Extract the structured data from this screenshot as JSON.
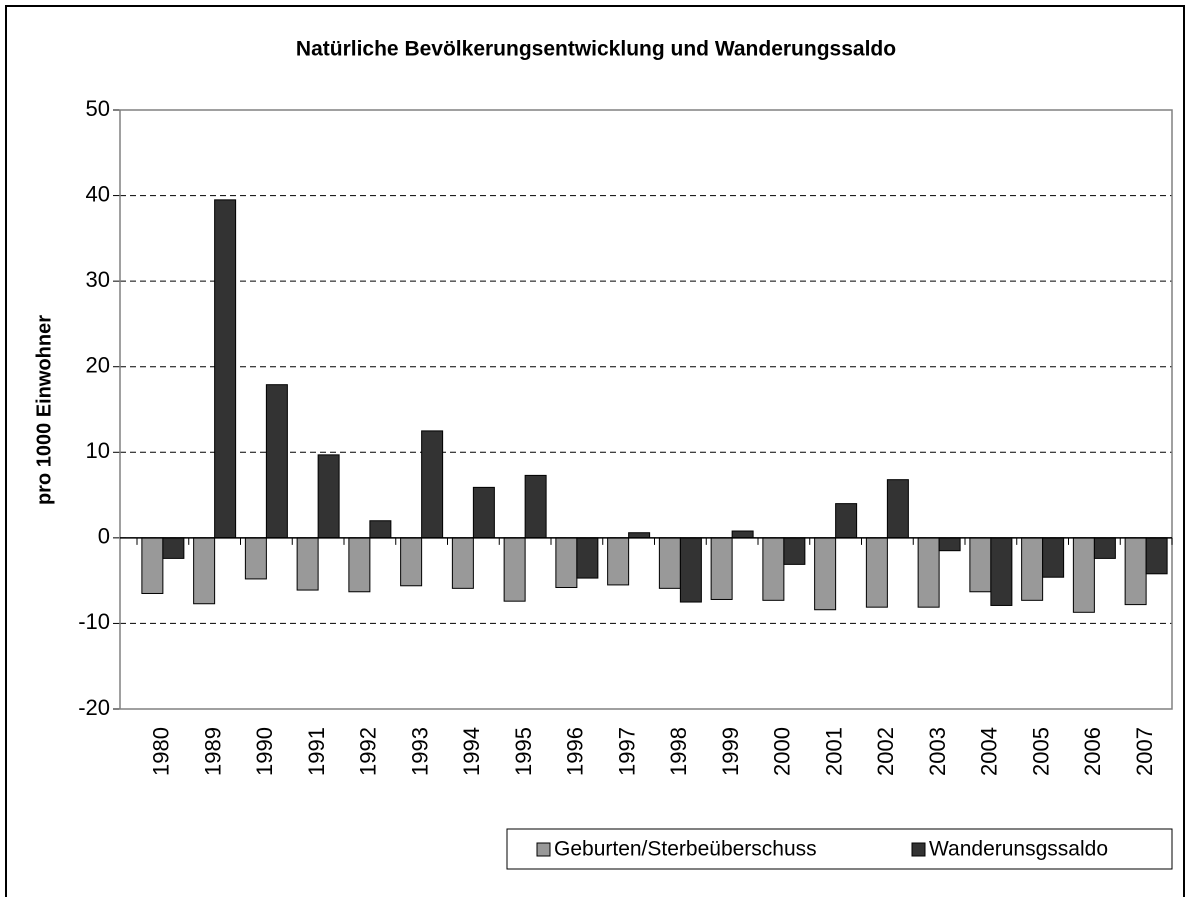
{
  "chart_data": {
    "type": "bar",
    "title": "Natürliche Bevölkerungsentwicklung und Wanderungssaldo",
    "y_label": "pro 1000 Einwohner",
    "categories": [
      "1980",
      "1989",
      "1990",
      "1991",
      "1992",
      "1993",
      "1994",
      "1995",
      "1996",
      "1997",
      "1998",
      "1999",
      "2000",
      "2001",
      "2002",
      "2003",
      "2004",
      "2005",
      "2006",
      "2007"
    ],
    "series": [
      {
        "name": "Geburten/Sterbeüberschuss",
        "color": "#999999",
        "values": [
          -6.5,
          -7.7,
          -4.8,
          -6.1,
          -6.3,
          -5.6,
          -5.9,
          -7.4,
          -5.8,
          -5.5,
          -5.9,
          -7.2,
          -7.3,
          -8.4,
          -8.1,
          -8.1,
          -6.3,
          -7.3,
          -8.7,
          -7.8
        ]
      },
      {
        "name": "Wanderunsgssaldo",
        "color": "#333333",
        "values": [
          -2.4,
          39.5,
          17.9,
          9.7,
          2.0,
          12.5,
          5.9,
          7.3,
          -4.7,
          0.6,
          -7.5,
          0.8,
          -3.1,
          4.0,
          6.8,
          -1.5,
          -7.9,
          -4.6,
          -2.4,
          -4.2
        ]
      }
    ],
    "ylim": [
      -20,
      50
    ],
    "yticks": [
      -20,
      -10,
      0,
      10,
      20,
      30,
      40,
      50
    ],
    "grid": true,
    "legend": "bottom-right"
  }
}
